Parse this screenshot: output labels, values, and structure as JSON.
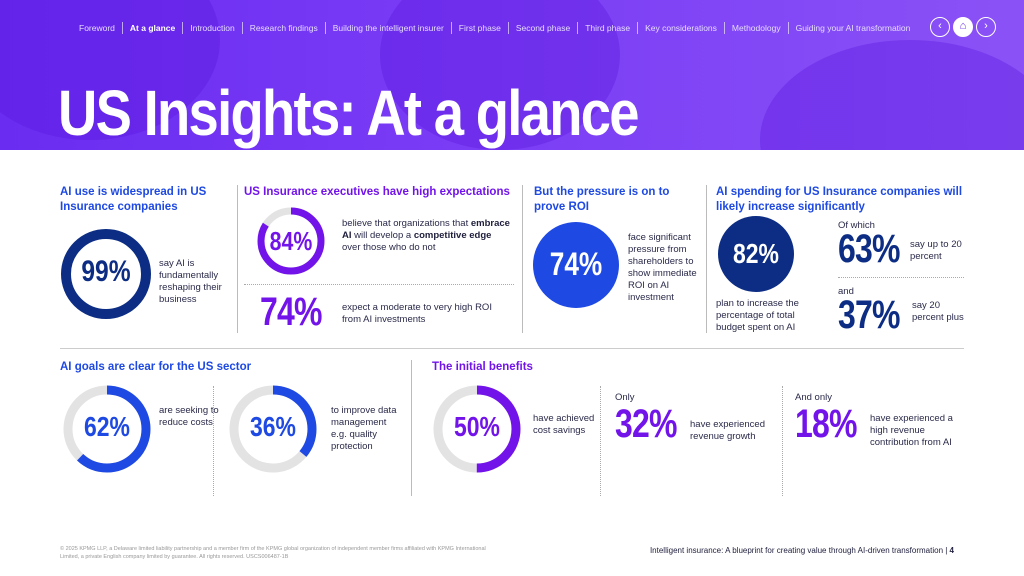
{
  "nav": {
    "items": [
      "Foreword",
      "At a glance",
      "Introduction",
      "Research findings",
      "Building the intelligent insurer",
      "First phase",
      "Second phase",
      "Third phase",
      "Key considerations",
      "Methodology",
      "Guiding your AI transformation"
    ],
    "active": "At a glance",
    "prev_icon": "chevron-left-icon",
    "home_icon": "home-icon",
    "next_icon": "chevron-right-icon"
  },
  "title": "US Insights: At a glance",
  "colors": {
    "purple": "#7213ea",
    "blue": "#1e49e2",
    "navy": "#0c2d83",
    "grey": "#e3e3e3"
  },
  "widespread": {
    "heading": "AI use is widespread in US Insurance companies",
    "pct": "99%",
    "value": 99,
    "desc": "say AI is fundamentally reshaping their business"
  },
  "expectations": {
    "heading": "US Insurance executives have high expectations",
    "stat1": {
      "pct": "84%",
      "value": 84,
      "pre": "believe that organizations that ",
      "b1": "embrace AI",
      "mid": " will develop a ",
      "b2": "competitive edge",
      "post": " over those who do not"
    },
    "stat2": {
      "pct": "74%",
      "desc": "expect a moderate to very high ROI from AI investments"
    }
  },
  "pressure": {
    "heading": "But the pressure is on to prove ROI",
    "pct": "74%",
    "desc": "face significant pressure from shareholders to show immediate ROI on AI investment"
  },
  "spending": {
    "heading": "AI spending for US Insurance companies will likely increase significantly",
    "pct": "82%",
    "desc": "plan to increase the percentage of total budget spent on AI",
    "of_which": "Of which",
    "s1": {
      "pct": "63%",
      "desc": "say up to 20 percent"
    },
    "and": "and",
    "s2": {
      "pct": "37%",
      "desc": "say 20 percent plus"
    }
  },
  "goals": {
    "heading": "AI goals are clear for the US sector",
    "g1": {
      "pct": "62%",
      "value": 62,
      "desc": "are seeking to reduce costs"
    },
    "g2": {
      "pct": "36%",
      "value": 36,
      "desc": "to improve data management e.g. quality protection"
    }
  },
  "benefits": {
    "heading": "The initial benefits",
    "b1": {
      "pct": "50%",
      "value": 50,
      "desc": "have achieved cost savings"
    },
    "b2": {
      "pre": "Only",
      "pct": "32%",
      "desc": "have experienced revenue growth"
    },
    "b3": {
      "pre": "And only",
      "pct": "18%",
      "desc": "have experienced a high revenue contribution from AI"
    }
  },
  "footer": {
    "legal": "© 2025 KPMG LLP, a Delaware limited liability partnership and a member firm of the KPMG global organization of independent member firms affiliated with KPMG International Limited, a private English company limited by guarantee. All rights reserved. USCS006487-1B",
    "doc_title": "Intelligent insurance: A blueprint for creating value through AI-driven transformation",
    "page": "4"
  }
}
